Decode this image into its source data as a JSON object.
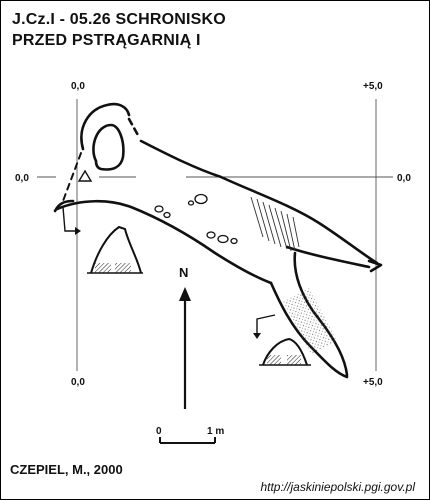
{
  "header": {
    "line1": "J.Cz.I - 05.26  SCHRONISKO",
    "line2": "PRZED PSTRĄGARNIĄ I"
  },
  "grid": {
    "top_left": "0,0",
    "top_right": "+5,0",
    "left_mid": "0,0",
    "right_mid": "0,0",
    "bottom_left": "0,0",
    "bottom_right": "+5,0"
  },
  "north_arrow": {
    "label": "N"
  },
  "scale_bar": {
    "start": "0",
    "end": "1 m"
  },
  "footer": {
    "author": "CZEPIEL, M., 2000",
    "source": "http://jaskiniepolski.pgi.gov.pl"
  }
}
